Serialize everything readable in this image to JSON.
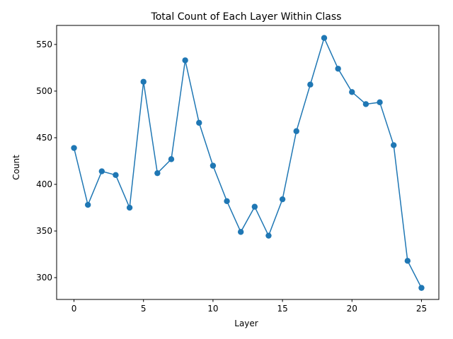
{
  "chart_data": {
    "type": "line",
    "title": "Total Count of Each Layer Within Class",
    "xlabel": "Layer",
    "ylabel": "Count",
    "x": [
      0,
      1,
      2,
      3,
      4,
      5,
      6,
      7,
      8,
      9,
      10,
      11,
      12,
      13,
      14,
      15,
      16,
      17,
      18,
      19,
      20,
      21,
      22,
      23,
      24,
      25
    ],
    "series": [
      {
        "color": "#1f77b4",
        "marker": "circle",
        "values": [
          439,
          378,
          414,
          410,
          375,
          510,
          412,
          427,
          533,
          466,
          420,
          382,
          349,
          376,
          345,
          384,
          457,
          507,
          557,
          524,
          499,
          486,
          488,
          442,
          318,
          289
        ]
      }
    ],
    "xlim": [
      -1.25,
      26.25
    ],
    "ylim": [
      276.6,
      570.4
    ],
    "xticks": [
      0,
      5,
      10,
      15,
      20,
      25
    ],
    "yticks": [
      300,
      350,
      400,
      450,
      500,
      550
    ],
    "grid": false,
    "legend": "none"
  }
}
